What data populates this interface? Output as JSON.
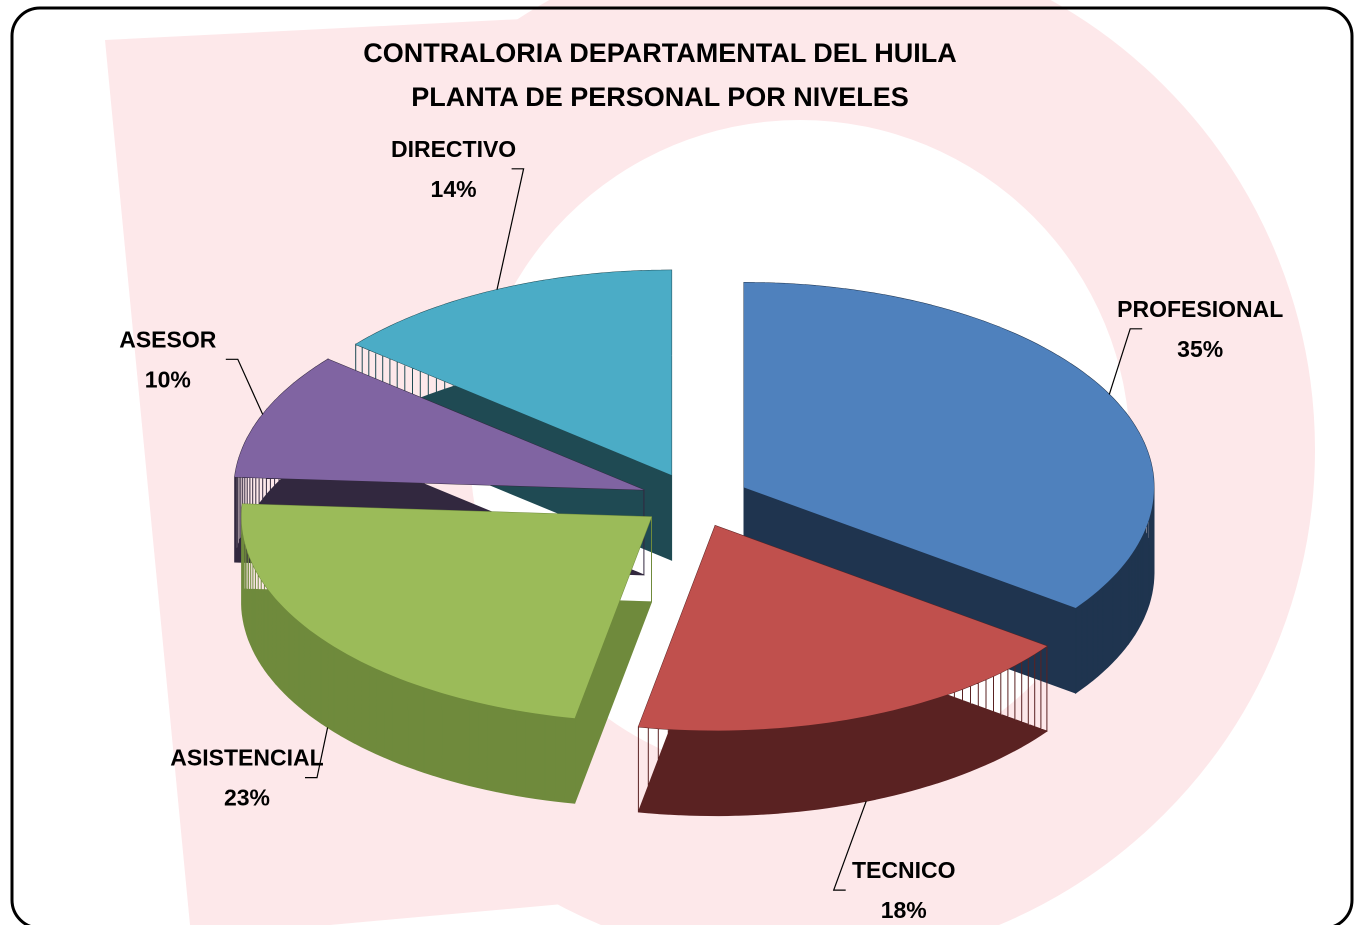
{
  "chart_data": {
    "type": "pie",
    "title": [
      "CONTRALORIA DEPARTAMENTAL DEL HUILA",
      "PLANTA DE PERSONAL POR NIVELES"
    ],
    "categories": [
      "PROFESIONAL",
      "TECNICO",
      "ASISTENCIAL",
      "ASESOR",
      "DIRECTIVO"
    ],
    "values": [
      35,
      18,
      23,
      10,
      14
    ],
    "value_labels": [
      "35%",
      "18%",
      "23%",
      "10%",
      "14%"
    ],
    "colors": [
      "#4f81bd",
      "#c0504d",
      "#9bbb59",
      "#8064a2",
      "#4bacc6"
    ],
    "side_colors": [
      "#1f344f",
      "#5a2222",
      "#6f8a3c",
      "#32283f",
      "#1f4a53"
    ]
  }
}
